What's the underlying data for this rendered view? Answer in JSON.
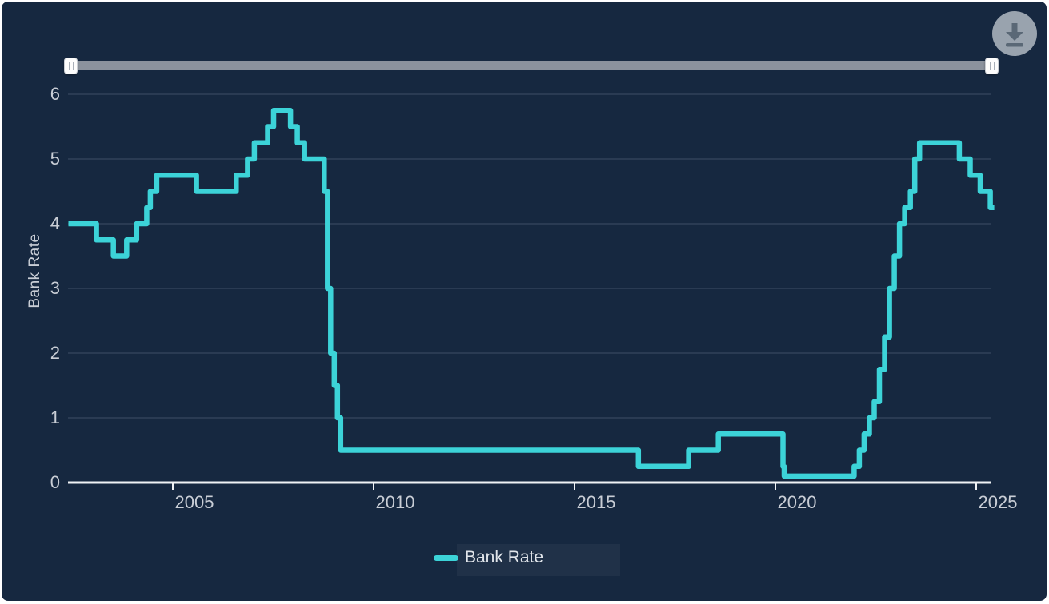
{
  "window": {
    "background": "#FFFFFF",
    "panel_background": "#162840"
  },
  "toolbar": {
    "download_button": {
      "icon": "download-icon",
      "circle_color": "#99A3AE",
      "icon_color": "#5A6876"
    }
  },
  "range_slider": {
    "track_color": "#8B929D",
    "left_handle": "start",
    "right_handle": "end",
    "grip_icon": "drag-grip-icon"
  },
  "colors": {
    "gridline": "#3D4E66",
    "axis": "#EFF2F5",
    "tick_label": "#C9CED6"
  },
  "chart_data": {
    "type": "line",
    "step": true,
    "title": "",
    "xlabel": "",
    "ylabel": "Bank Rate",
    "x_units": "year",
    "xlim": [
      2002.4,
      2025.45
    ],
    "ylim": [
      0,
      6
    ],
    "yticks": [
      0,
      1,
      2,
      3,
      4,
      5,
      6
    ],
    "xticks": [
      2005,
      2010,
      2015,
      2020,
      2025
    ],
    "grid": "horizontal",
    "legend": {
      "position": "bottom",
      "label": "Bank Rate"
    },
    "series": [
      {
        "name": "Bank Rate",
        "color": "#3CD3D8",
        "points": [
          [
            2002.4,
            4.0
          ],
          [
            2003.1,
            3.75
          ],
          [
            2003.52,
            3.5
          ],
          [
            2003.85,
            3.75
          ],
          [
            2004.1,
            4.0
          ],
          [
            2004.35,
            4.25
          ],
          [
            2004.44,
            4.5
          ],
          [
            2004.6,
            4.75
          ],
          [
            2005.59,
            4.5
          ],
          [
            2006.58,
            4.75
          ],
          [
            2006.86,
            5.0
          ],
          [
            2007.03,
            5.25
          ],
          [
            2007.36,
            5.5
          ],
          [
            2007.51,
            5.75
          ],
          [
            2007.93,
            5.5
          ],
          [
            2008.1,
            5.25
          ],
          [
            2008.28,
            5.0
          ],
          [
            2008.77,
            4.5
          ],
          [
            2008.85,
            3.0
          ],
          [
            2008.93,
            2.0
          ],
          [
            2009.02,
            1.5
          ],
          [
            2009.1,
            1.0
          ],
          [
            2009.18,
            0.5
          ],
          [
            2016.59,
            0.25
          ],
          [
            2017.84,
            0.5
          ],
          [
            2018.58,
            0.75
          ],
          [
            2020.19,
            0.25
          ],
          [
            2020.22,
            0.1
          ],
          [
            2021.96,
            0.25
          ],
          [
            2022.09,
            0.5
          ],
          [
            2022.21,
            0.75
          ],
          [
            2022.34,
            1.0
          ],
          [
            2022.46,
            1.25
          ],
          [
            2022.59,
            1.75
          ],
          [
            2022.72,
            2.25
          ],
          [
            2022.84,
            3.0
          ],
          [
            2022.96,
            3.5
          ],
          [
            2023.09,
            4.0
          ],
          [
            2023.22,
            4.25
          ],
          [
            2023.36,
            4.5
          ],
          [
            2023.47,
            5.0
          ],
          [
            2023.59,
            5.25
          ],
          [
            2024.58,
            5.0
          ],
          [
            2024.85,
            4.75
          ],
          [
            2025.1,
            4.5
          ],
          [
            2025.35,
            4.25
          ]
        ]
      }
    ]
  }
}
